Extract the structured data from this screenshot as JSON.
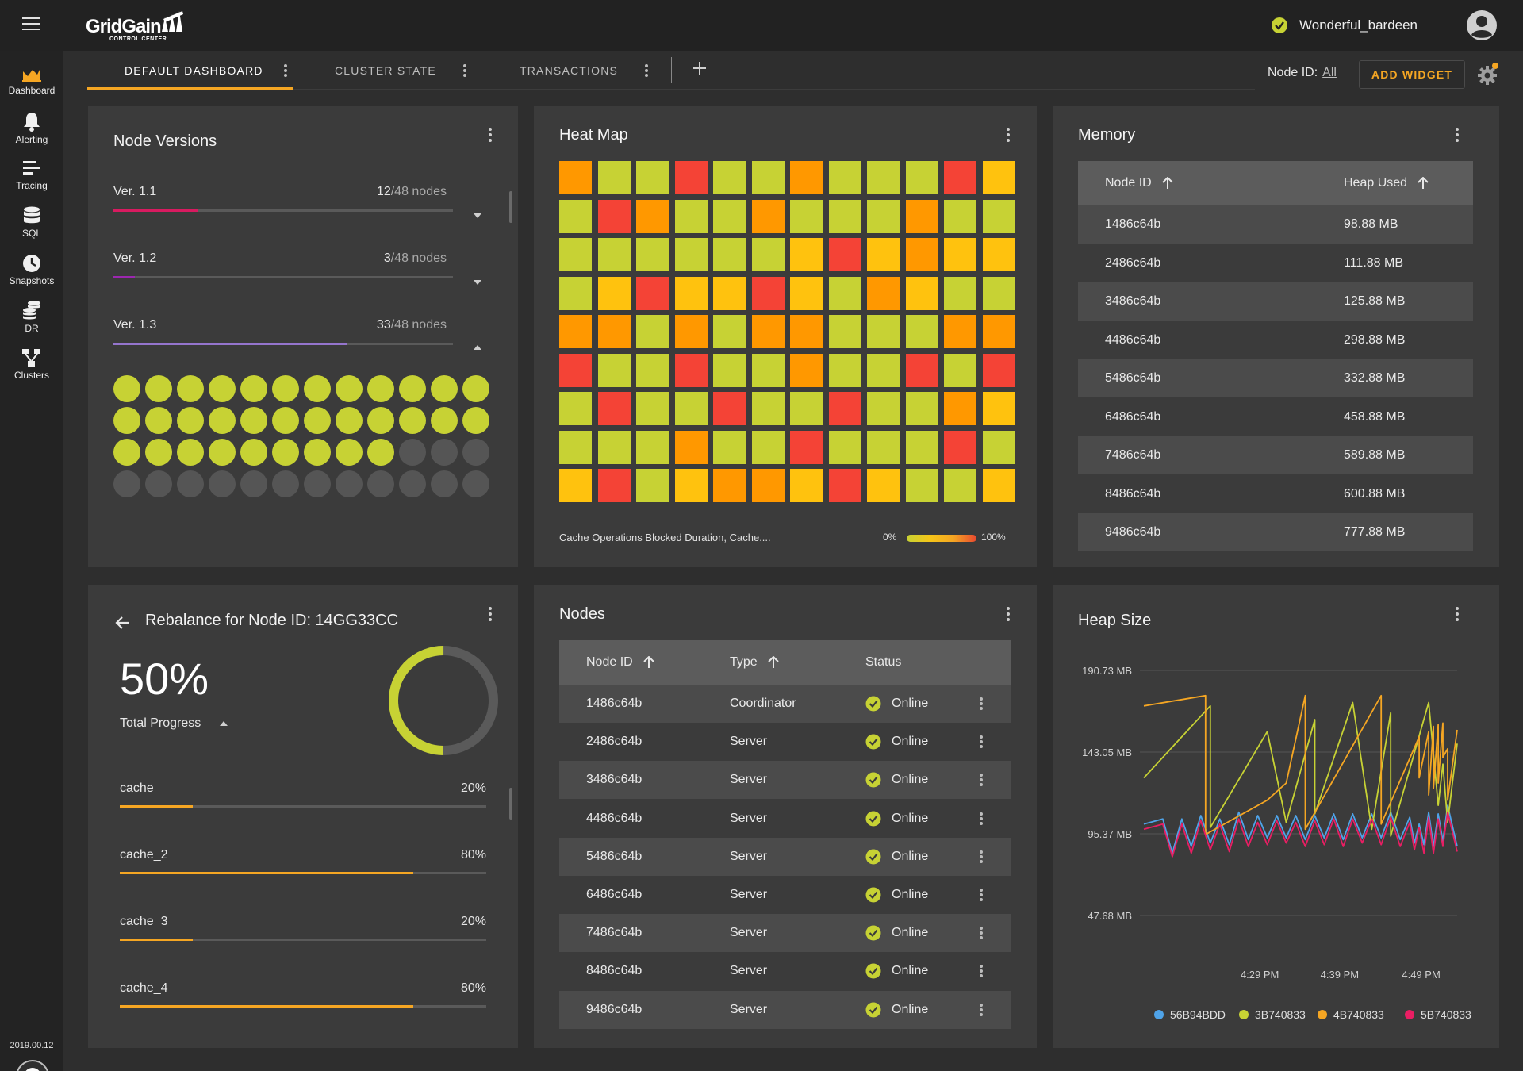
{
  "header": {
    "logo_text": "GridGain",
    "logo_sub": "CONTROL CENTER",
    "user_name": "Wonderful_bardeen"
  },
  "sidebar": {
    "items": [
      {
        "label": "Dashboard",
        "icon": "dashboard-chart-icon",
        "active": true
      },
      {
        "label": "Alerting",
        "icon": "bell-icon"
      },
      {
        "label": "Tracing",
        "icon": "tracing-lines-icon"
      },
      {
        "label": "SQL",
        "icon": "database-icon"
      },
      {
        "label": "Snapshots",
        "icon": "clock-icon"
      },
      {
        "label": "DR",
        "icon": "dr-stack-icon"
      },
      {
        "label": "Clusters",
        "icon": "cluster-icon"
      }
    ],
    "version": "2019.00.12"
  },
  "tabs": [
    {
      "label": "DEFAULT DASHBOARD",
      "active": true
    },
    {
      "label": "CLUSTER STATE"
    },
    {
      "label": "TRANSACTIONS"
    }
  ],
  "toolbar": {
    "node_id_label": "Node ID:",
    "node_id_value": "All",
    "add_widget_label": "ADD WIDGET"
  },
  "colors": {
    "accent": "#f5a623",
    "lime": "#c7d234",
    "yellow": "#ffc20e",
    "orange": "#ff9800",
    "red": "#f44336",
    "online": "#c7d234"
  },
  "node_versions": {
    "title": "Node Versions",
    "versions": [
      {
        "name": "Ver. 1.1",
        "count": "12",
        "total": "/48 nodes",
        "fraction": 0.25,
        "color": "#d81b60"
      },
      {
        "name": "Ver. 1.2",
        "count": "3",
        "total": "/48 nodes",
        "fraction": 0.0625,
        "color": "#9c27b0"
      },
      {
        "name": "Ver. 1.3",
        "count": "33",
        "total": "/48 nodes",
        "fraction": 0.6875,
        "color": "#9575cd"
      }
    ],
    "dots_total": 48,
    "dots_active": 33
  },
  "heat_map": {
    "title": "Heat Map",
    "caption": "Cache Operations Blocked Duration, Cache....",
    "legend_min": "0%",
    "legend_max": "100%",
    "grid": [
      "OLLRLLOLLLRY",
      "LROLLOLLLOLL",
      "LLLLLLYRYOYY",
      "LYRYYRYLOYLL",
      "OOLOLOOLLLOO",
      "RLLRLLOLLRLR",
      "LRLLRLLRLLOY",
      "LLLOLLRLLLRL",
      "YRLYOOYRYLLY"
    ]
  },
  "memory": {
    "title": "Memory",
    "columns": [
      "Node ID",
      "Heap Used"
    ],
    "rows": [
      [
        "1486c64b",
        "98.88 MB"
      ],
      [
        "2486c64b",
        "111.88 MB"
      ],
      [
        "3486c64b",
        "125.88 MB"
      ],
      [
        "4486c64b",
        "298.88 MB"
      ],
      [
        "5486c64b",
        "332.88 MB"
      ],
      [
        "6486c64b",
        "458.88 MB"
      ],
      [
        "7486c64b",
        "589.88 MB"
      ],
      [
        "8486c64b",
        "600.88 MB"
      ],
      [
        "9486c64b",
        "777.88 MB"
      ]
    ]
  },
  "rebalance": {
    "title": "Rebalance for Node ID: 14GG33CC",
    "total_percent": "50%",
    "total_fraction": 0.5,
    "total_label": "Total Progress",
    "caches": [
      {
        "name": "cache",
        "percent": "20%",
        "fraction": 0.2
      },
      {
        "name": "cache_2",
        "percent": "80%",
        "fraction": 0.8
      },
      {
        "name": "cache_3",
        "percent": "20%",
        "fraction": 0.2
      },
      {
        "name": "cache_4",
        "percent": "80%",
        "fraction": 0.8
      }
    ]
  },
  "nodes": {
    "title": "Nodes",
    "columns": [
      "Node ID",
      "Type",
      "Status"
    ],
    "rows": [
      [
        "1486c64b",
        "Coordinator",
        "Online"
      ],
      [
        "2486c64b",
        "Server",
        "Online"
      ],
      [
        "3486c64b",
        "Server",
        "Online"
      ],
      [
        "4486c64b",
        "Server",
        "Online"
      ],
      [
        "5486c64b",
        "Server",
        "Online"
      ],
      [
        "6486c64b",
        "Server",
        "Online"
      ],
      [
        "7486c64b",
        "Server",
        "Online"
      ],
      [
        "8486c64b",
        "Server",
        "Online"
      ],
      [
        "9486c64b",
        "Server",
        "Online"
      ]
    ]
  },
  "chart_data": {
    "type": "line",
    "title": "Heap Size",
    "xlabel": "",
    "ylabel": "",
    "y_ticks": [
      "190.73 MB",
      "143.05 MB",
      "95.37 MB",
      "47.68 MB"
    ],
    "x_ticks": [
      "4:29 PM",
      "4:39 PM",
      "4:49 PM"
    ],
    "ylim": [
      47.68,
      190.73
    ],
    "xlim": [
      0,
      33
    ],
    "grid": true,
    "legend_position": "bottom",
    "series": [
      {
        "name": "56B94BDD",
        "color": "#4fa3e8",
        "x": [
          0,
          2,
          3,
          4,
          5,
          6,
          7,
          8,
          9,
          10,
          11,
          12,
          13,
          14,
          15,
          16,
          17,
          18,
          19,
          20,
          21,
          22,
          23,
          24,
          25,
          26,
          27,
          28,
          28.5,
          29,
          29.5,
          30,
          30.5,
          31,
          31.5,
          32,
          33
        ],
        "y": [
          101,
          104,
          84,
          104,
          88,
          106,
          90,
          104,
          89,
          108,
          92,
          106,
          93,
          106,
          93,
          106,
          92,
          106,
          93,
          107,
          92,
          107,
          93,
          107,
          93,
          108,
          92,
          105,
          90,
          101,
          89,
          108,
          88,
          107,
          91,
          112,
          88
        ]
      },
      {
        "name": "3B740833",
        "color": "#c7d234",
        "x": [
          0,
          7,
          7,
          13,
          15,
          18,
          18,
          22,
          24,
          26,
          26,
          30,
          31,
          31.5,
          32,
          33
        ],
        "y": [
          128,
          170,
          99,
          155,
          102,
          162,
          107,
          172,
          98,
          166,
          94,
          172,
          112,
          136,
          102,
          148
        ]
      },
      {
        "name": "4B740833",
        "color": "#f5a623",
        "x": [
          0,
          6.5,
          6.5,
          13,
          15,
          17,
          17,
          25,
          25,
          29,
          29,
          30,
          30,
          30.5,
          30.5,
          31,
          31,
          31.5,
          31.5,
          32,
          32,
          33
        ],
        "y": [
          170,
          176,
          95,
          115,
          125,
          176,
          98,
          176,
          101,
          152,
          128,
          155,
          118,
          158,
          122,
          159,
          125,
          160,
          140,
          145,
          115,
          156
        ]
      },
      {
        "name": "5B740833",
        "color": "#e91e63",
        "x": [
          0,
          2,
          3,
          4,
          5,
          6,
          7,
          8,
          9,
          10,
          11,
          12,
          13,
          14,
          15,
          16,
          17,
          18,
          19,
          20,
          21,
          22,
          23,
          24,
          25,
          26,
          27,
          28,
          28.5,
          29,
          29.5,
          30,
          30.5,
          31,
          31.5,
          32,
          33
        ],
        "y": [
          98,
          101,
          82,
          101,
          84,
          103,
          86,
          101,
          85,
          104,
          88,
          102,
          89,
          103,
          90,
          102,
          88,
          103,
          89,
          104,
          88,
          104,
          90,
          104,
          89,
          105,
          88,
          102,
          86,
          99,
          84,
          105,
          84,
          104,
          88,
          108,
          85
        ]
      }
    ]
  }
}
